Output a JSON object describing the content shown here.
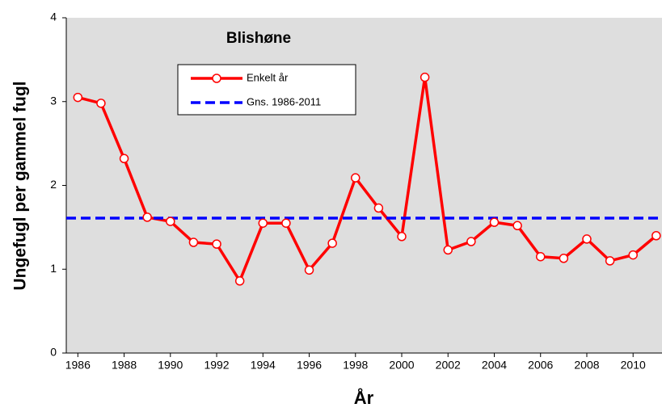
{
  "chart_data": {
    "type": "line",
    "title": "Blishøne",
    "x_label": "År",
    "y_label": "Ungefugl per gammel fugl",
    "x": [
      1986,
      1987,
      1988,
      1989,
      1990,
      1991,
      1992,
      1993,
      1994,
      1995,
      1996,
      1997,
      1998,
      1999,
      2000,
      2001,
      2002,
      2003,
      2004,
      2005,
      2006,
      2007,
      2008,
      2009,
      2010,
      2011
    ],
    "series": [
      {
        "name": "Enkelt år",
        "color": "#ff0000",
        "values": [
          3.05,
          2.98,
          2.32,
          1.62,
          1.57,
          1.32,
          1.3,
          0.86,
          1.55,
          1.55,
          0.99,
          1.31,
          2.09,
          1.73,
          1.39,
          3.29,
          1.23,
          1.33,
          1.56,
          1.52,
          1.15,
          1.13,
          1.36,
          1.1,
          1.17,
          1.4
        ]
      },
      {
        "name": "Gns. 1986-2011",
        "color": "#0000ff",
        "value": 1.61
      }
    ],
    "xlim": [
      1985.5,
      2011.25
    ],
    "xticks": [
      1986,
      1988,
      1990,
      1992,
      1994,
      1996,
      1998,
      2000,
      2002,
      2004,
      2006,
      2008,
      2010
    ],
    "ylim": [
      0,
      4
    ],
    "yticks": [
      0,
      1,
      2,
      3,
      4
    ]
  }
}
